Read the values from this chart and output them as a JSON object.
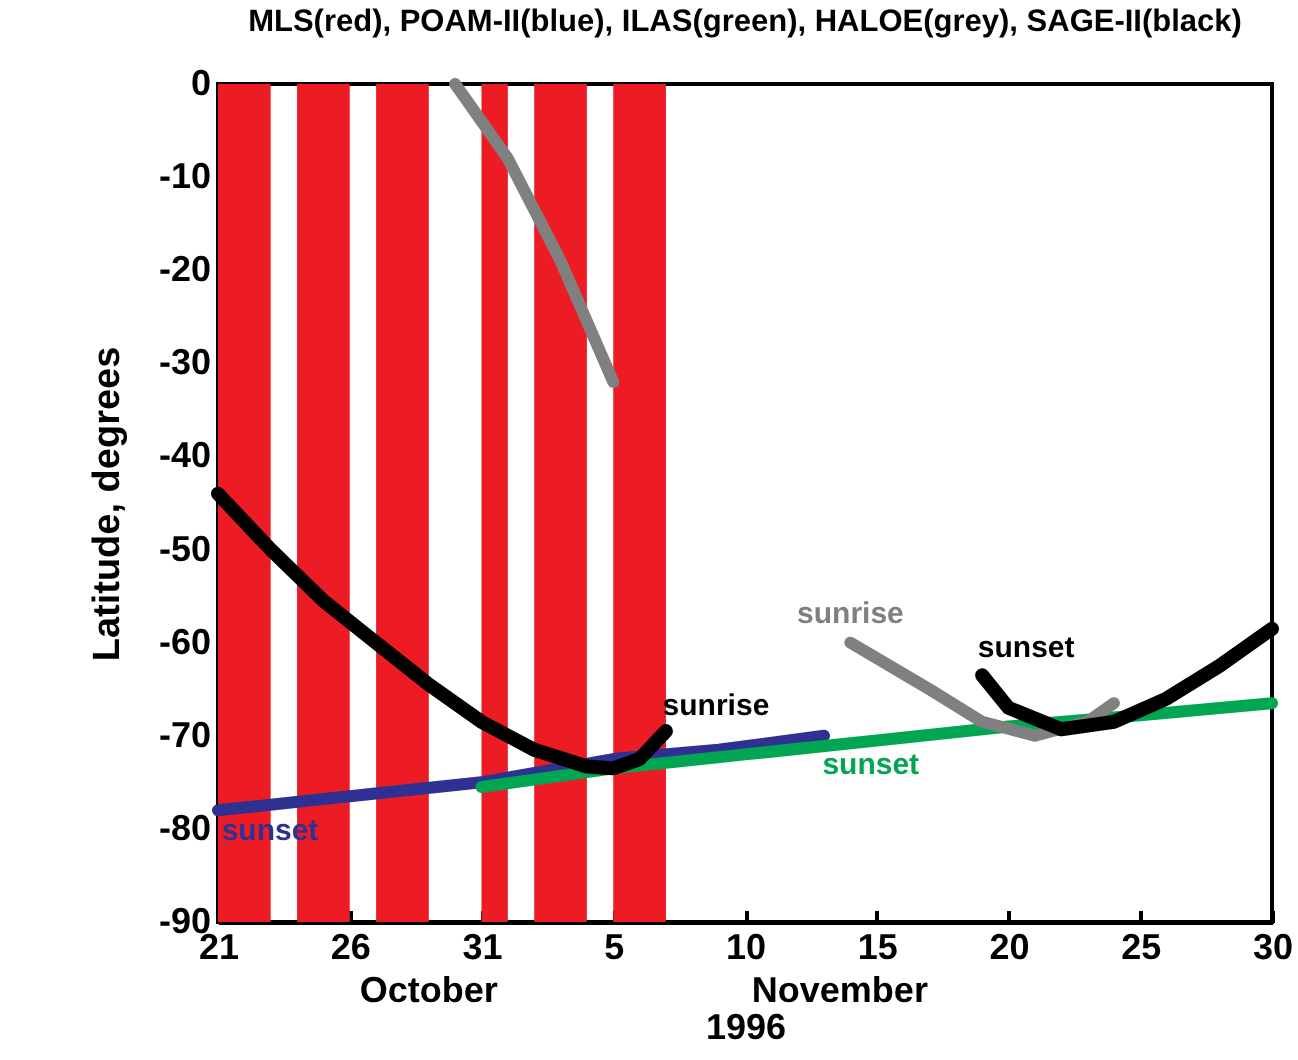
{
  "chart_data": {
    "type": "line",
    "title": "MLS(red), POAM-II(blue), ILAS(green), HALOE(grey), SAGE-II(black)",
    "xlabel": "1996",
    "ylabel": "Latitude, degrees",
    "xlim": [
      "1996-10-21",
      "1996-11-30"
    ],
    "xticks": [
      {
        "value": "1996-10-21",
        "label": "21"
      },
      {
        "value": "1996-10-26",
        "label": "26"
      },
      {
        "value": "1996-10-31",
        "label": "31"
      },
      {
        "value": "1996-11-05",
        "label": "5"
      },
      {
        "value": "1996-11-10",
        "label": "10"
      },
      {
        "value": "1996-11-15",
        "label": "15"
      },
      {
        "value": "1996-11-20",
        "label": "20"
      },
      {
        "value": "1996-11-25",
        "label": "25"
      },
      {
        "value": "1996-11-30",
        "label": "30"
      }
    ],
    "ylim": [
      -90,
      0
    ],
    "yticks": [
      -90,
      -80,
      -70,
      -60,
      -50,
      -40,
      -30,
      -20,
      -10,
      0
    ],
    "grid": false,
    "bands": [
      {
        "axis": "x",
        "from": "1996-10-21",
        "to": "1996-10-23",
        "color": "#ed1c24"
      },
      {
        "axis": "x",
        "from": "1996-10-24",
        "to": "1996-10-26",
        "color": "#ed1c24"
      },
      {
        "axis": "x",
        "from": "1996-10-27",
        "to": "1996-10-29",
        "color": "#ed1c24"
      },
      {
        "axis": "x",
        "from": "1996-10-31",
        "to": "1996-11-01",
        "color": "#ed1c24"
      },
      {
        "axis": "x",
        "from": "1996-11-02",
        "to": "1996-11-04",
        "color": "#ed1c24"
      },
      {
        "axis": "x",
        "from": "1996-11-05",
        "to": "1996-11-07",
        "color": "#ed1c24"
      }
    ],
    "series": [
      {
        "name": "sunset",
        "color": "#2e3192",
        "x": [
          "1996-10-21",
          "1996-10-26",
          "1996-10-31",
          "1996-11-05",
          "1996-11-09",
          "1996-11-13"
        ],
        "values": [
          -78,
          -76.5,
          -75,
          -72.5,
          -71.5,
          -70
        ]
      },
      {
        "name": "sunset",
        "color": "#00a651",
        "x": [
          "1996-10-31",
          "1996-11-05",
          "1996-11-10",
          "1996-11-15",
          "1996-11-20",
          "1996-11-25",
          "1996-11-30"
        ],
        "values": [
          -75.5,
          -73.5,
          -72,
          -70.5,
          -69,
          -67.8,
          -66.5
        ]
      },
      {
        "color": "#808080",
        "x": [
          "1996-10-30",
          "1996-11-01",
          "1996-11-03",
          "1996-11-05"
        ],
        "values": [
          0,
          -8,
          -19,
          -32
        ]
      },
      {
        "name": "sunrise",
        "color": "#808080",
        "x": [
          "1996-11-14",
          "1996-11-17",
          "1996-11-19",
          "1996-11-21",
          "1996-11-23",
          "1996-11-24"
        ],
        "values": [
          -60,
          -65,
          -68.5,
          -70,
          -68.5,
          -66.5
        ]
      },
      {
        "name": "sunrise",
        "color": "#000000",
        "x": [
          "1996-10-21",
          "1996-10-23",
          "1996-10-25",
          "1996-10-27",
          "1996-10-29",
          "1996-10-31",
          "1996-11-02",
          "1996-11-04",
          "1996-11-05",
          "1996-11-06",
          "1996-11-07"
        ],
        "values": [
          -44,
          -50,
          -55.5,
          -60,
          -64.5,
          -68.5,
          -71.5,
          -73.3,
          -73.5,
          -72.5,
          -69.5
        ]
      },
      {
        "name": "sunset",
        "color": "#000000",
        "x": [
          "1996-11-19",
          "1996-11-20",
          "1996-11-22",
          "1996-11-24",
          "1996-11-26",
          "1996-11-28",
          "1996-11-30"
        ],
        "values": [
          -63.5,
          -67,
          -69.3,
          -68.5,
          -66,
          -62.5,
          -58.5
        ]
      }
    ],
    "annotations": [
      "October",
      "November"
    ]
  }
}
